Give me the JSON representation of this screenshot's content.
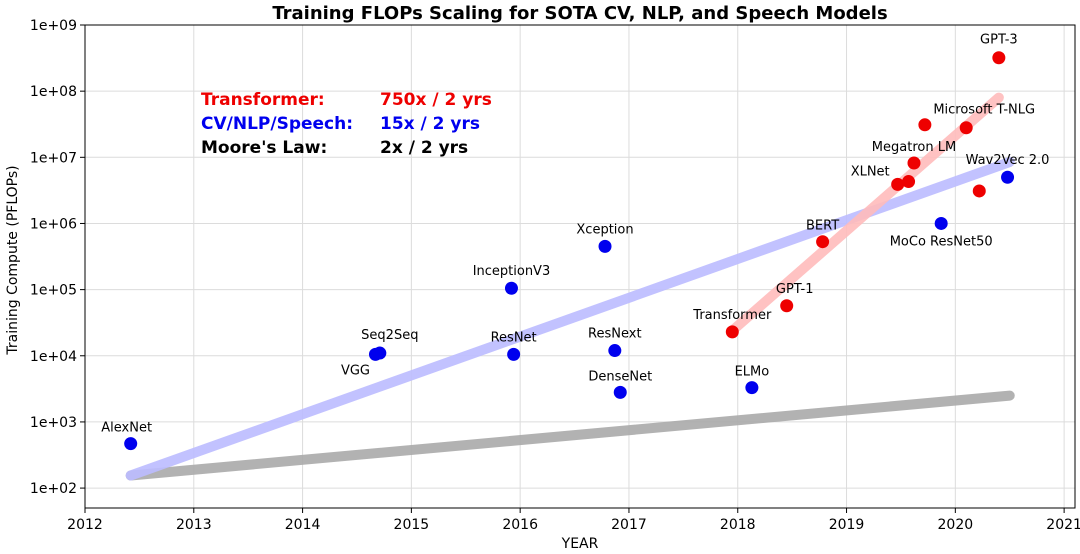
{
  "chart_data": {
    "type": "scatter",
    "title": "Training FLOPs Scaling for SOTA CV, NLP, and Speech Models",
    "xlabel": "YEAR",
    "ylabel": "Training Compute (PFLOPs)",
    "xlim": [
      2012,
      2021.1
    ],
    "ylim": [
      50,
      1000000000
    ],
    "yscale": "log",
    "x_ticks": [
      2012,
      2013,
      2014,
      2015,
      2016,
      2017,
      2018,
      2019,
      2020,
      2021
    ],
    "y_ticks": [
      {
        "value": 100,
        "label": "1e+02"
      },
      {
        "value": 1000,
        "label": "1e+03"
      },
      {
        "value": 10000,
        "label": "1e+04"
      },
      {
        "value": 100000,
        "label": "1e+05"
      },
      {
        "value": 1000000,
        "label": "1e+06"
      },
      {
        "value": 10000000,
        "label": "1e+07"
      },
      {
        "value": 100000000,
        "label": "1e+08"
      },
      {
        "value": 1000000000,
        "label": "1e+09"
      }
    ],
    "grid": true,
    "series": [
      {
        "color": "#0000ee",
        "points": [
          {
            "x": 2012.42,
            "y": 470,
            "label": "AlexNet"
          },
          {
            "x": 2014.67,
            "y": 10500,
            "label": "VGG"
          },
          {
            "x": 2014.71,
            "y": 11000,
            "label": "Seq2Seq"
          },
          {
            "x": 2015.92,
            "y": 105000,
            "label": "InceptionV3"
          },
          {
            "x": 2015.94,
            "y": 10500,
            "label": "ResNet"
          },
          {
            "x": 2016.78,
            "y": 450000,
            "label": "Xception"
          },
          {
            "x": 2016.87,
            "y": 12000,
            "label": "ResNext"
          },
          {
            "x": 2016.92,
            "y": 2800,
            "label": "DenseNet"
          },
          {
            "x": 2018.13,
            "y": 3300,
            "label": "ELMo"
          },
          {
            "x": 2019.87,
            "y": 1000000,
            "label": "MoCo ResNet50"
          },
          {
            "x": 2020.48,
            "y": 5000000,
            "label": "Wav2Vec 2.0"
          }
        ]
      },
      {
        "color": "#ee0000",
        "points": [
          {
            "x": 2017.95,
            "y": 23000,
            "label": "Transformer"
          },
          {
            "x": 2018.45,
            "y": 57000,
            "label": "GPT-1"
          },
          {
            "x": 2018.78,
            "y": 530000,
            "label": "BERT"
          },
          {
            "x": 2019.47,
            "y": 3900000,
            "label": "XLNet"
          },
          {
            "x": 2019.57,
            "y": 4300000,
            "label": ""
          },
          {
            "x": 2019.62,
            "y": 8200000,
            "label": "Megatron LM"
          },
          {
            "x": 2019.72,
            "y": 31000000,
            "label": ""
          },
          {
            "x": 2020.1,
            "y": 28000000,
            "label": "Microsoft T-NLG"
          },
          {
            "x": 2020.22,
            "y": 3100000,
            "label": ""
          },
          {
            "x": 2020.4,
            "y": 320000000,
            "label": "GPT-3"
          }
        ]
      }
    ],
    "trend_lines": [
      {
        "color": "#aaaaaa",
        "from": {
          "x": 2012.42,
          "y": 155
        },
        "to": {
          "x": 2020.5,
          "y": 2500
        }
      },
      {
        "color": "#bbbbff",
        "from": {
          "x": 2012.42,
          "y": 155
        },
        "to": {
          "x": 2020.5,
          "y": 8500000
        }
      },
      {
        "color": "#ffbbbb",
        "from": {
          "x": 2017.95,
          "y": 24000
        },
        "to": {
          "x": 2020.4,
          "y": 80000000
        }
      }
    ],
    "legend": {
      "placement": "top-left",
      "entries": [
        {
          "name": "Transformer:",
          "rate": "750x / 2 yrs",
          "color": "#ee0000"
        },
        {
          "name": "CV/NLP/Speech:",
          "rate": "15x / 2 yrs",
          "color": "#0000ee"
        },
        {
          "name": "Moore's Law:",
          "rate": "2x / 2 yrs",
          "color": "#000000"
        }
      ]
    }
  }
}
